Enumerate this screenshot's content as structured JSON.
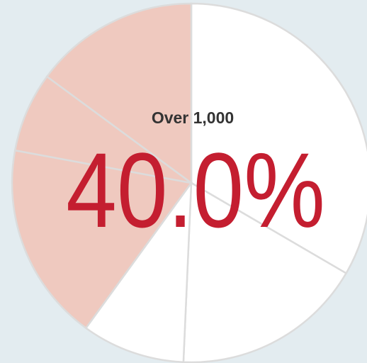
{
  "chart_data": {
    "type": "pie",
    "values": [
      33.4,
      17.3,
      9.3,
      17.9,
      7.2,
      14.9
    ],
    "colors": [
      "#ffffff",
      "#ffffff",
      "#ffffff",
      "#efc9bf",
      "#efc9bf",
      "#efc9bf"
    ],
    "start_angle": 0,
    "annotations": [
      "Over 1,000",
      "40.0%"
    ]
  }
}
